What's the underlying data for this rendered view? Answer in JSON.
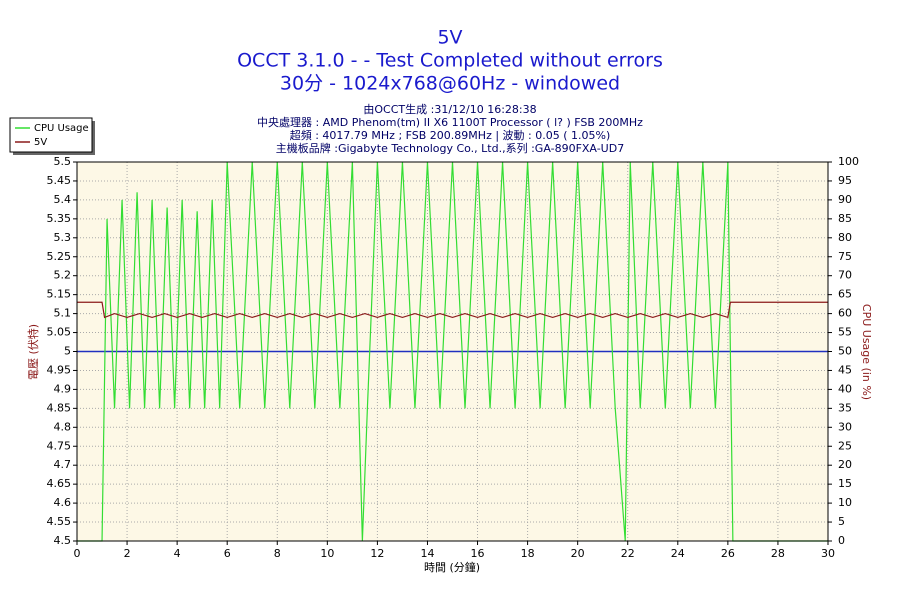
{
  "chart_data": {
    "type": "line",
    "title": "5V",
    "subtitle": "OCCT 3.1.0 -  - Test Completed without errors",
    "subtitle2": "30分 - 1024x768@60Hz - windowed",
    "info": [
      "由OCCT生成 :31/12/10 16:28:38",
      "中央處理器 : AMD Phenom(tm) II X6 1100T Processor (  l? ) FSB 200MHz",
      "超頻 : 4017.79 MHz ; FSB 200.89MHz | 波動 : 0.05 ( 1.05%)",
      "主機板品牌 :Gigabyte Technology Co., Ltd.,系列 :GA-890FXA-UD7"
    ],
    "xlabel": "時間 (分鐘)",
    "ylabel": "電壓 (伏特)",
    "y2label": "CPU Usage (in %)",
    "xlim": [
      0,
      30
    ],
    "xticks": [
      0,
      2,
      4,
      6,
      8,
      10,
      12,
      14,
      16,
      18,
      20,
      22,
      24,
      26,
      28,
      30
    ],
    "ylim": [
      4.5,
      5.5
    ],
    "yticks": [
      4.5,
      4.55,
      4.6,
      4.65,
      4.7,
      4.75,
      4.8,
      4.85,
      4.9,
      4.95,
      5,
      5.05,
      5.1,
      5.15,
      5.2,
      5.25,
      5.3,
      5.35,
      5.4,
      5.45,
      5.5
    ],
    "y2lim": [
      0,
      100
    ],
    "y2ticks": [
      0,
      5,
      10,
      15,
      20,
      25,
      30,
      35,
      40,
      45,
      50,
      55,
      60,
      65,
      70,
      75,
      80,
      85,
      90,
      95,
      100
    ],
    "grid": true,
    "legend": "top-left",
    "hline": 5,
    "hline_color": "#2030c0",
    "series": [
      {
        "name": "CPU Usage",
        "color": "#33dd33",
        "axis": "y2",
        "x": [
          0,
          1,
          1.2,
          1.5,
          1.8,
          2.1,
          2.4,
          2.7,
          3.0,
          3.3,
          3.6,
          3.9,
          4.2,
          4.5,
          4.8,
          5.1,
          5.4,
          5.7,
          6.0,
          6.5,
          7.0,
          7.5,
          8.0,
          8.5,
          9.0,
          9.5,
          10.0,
          10.5,
          11.0,
          11.4,
          11.6,
          12.0,
          12.5,
          13.0,
          13.5,
          14.0,
          14.5,
          15.0,
          15.5,
          16.0,
          16.5,
          17.0,
          17.5,
          18.0,
          18.5,
          19.0,
          19.5,
          20.0,
          20.5,
          21.0,
          21.5,
          21.9,
          22.1,
          22.5,
          23.0,
          23.5,
          24.0,
          24.5,
          25.0,
          25.5,
          26.0,
          26.2,
          30
        ],
        "values": [
          0,
          0,
          85,
          35,
          90,
          35,
          92,
          35,
          90,
          35,
          88,
          35,
          90,
          35,
          87,
          35,
          90,
          35,
          100,
          35,
          100,
          35,
          100,
          35,
          100,
          35,
          100,
          35,
          100,
          0,
          35,
          100,
          35,
          100,
          35,
          100,
          35,
          100,
          35,
          100,
          35,
          100,
          35,
          100,
          35,
          100,
          35,
          100,
          35,
          100,
          35,
          0,
          100,
          35,
          100,
          35,
          100,
          35,
          100,
          35,
          100,
          0,
          0
        ]
      },
      {
        "name": "5V",
        "color": "#8b1a1a",
        "axis": "y",
        "x": [
          0,
          1,
          1.1,
          1.5,
          2,
          2.5,
          3,
          3.5,
          4,
          4.5,
          5,
          5.5,
          6,
          6.5,
          7,
          7.5,
          8,
          8.5,
          9,
          9.5,
          10,
          10.5,
          11,
          11.5,
          12,
          12.5,
          13,
          13.5,
          14,
          14.5,
          15,
          15.5,
          16,
          16.5,
          17,
          17.5,
          18,
          18.5,
          19,
          19.5,
          20,
          20.5,
          21,
          21.5,
          22,
          22.5,
          23,
          23.5,
          24,
          24.5,
          25,
          25.5,
          26,
          26.1,
          30
        ],
        "values": [
          5.13,
          5.13,
          5.09,
          5.1,
          5.09,
          5.1,
          5.09,
          5.1,
          5.09,
          5.1,
          5.09,
          5.1,
          5.09,
          5.1,
          5.09,
          5.1,
          5.09,
          5.1,
          5.09,
          5.1,
          5.09,
          5.1,
          5.09,
          5.1,
          5.09,
          5.1,
          5.09,
          5.1,
          5.09,
          5.1,
          5.09,
          5.1,
          5.09,
          5.1,
          5.09,
          5.1,
          5.09,
          5.1,
          5.09,
          5.1,
          5.09,
          5.1,
          5.09,
          5.1,
          5.09,
          5.1,
          5.09,
          5.1,
          5.09,
          5.1,
          5.09,
          5.1,
          5.09,
          5.13,
          5.13
        ]
      }
    ]
  }
}
